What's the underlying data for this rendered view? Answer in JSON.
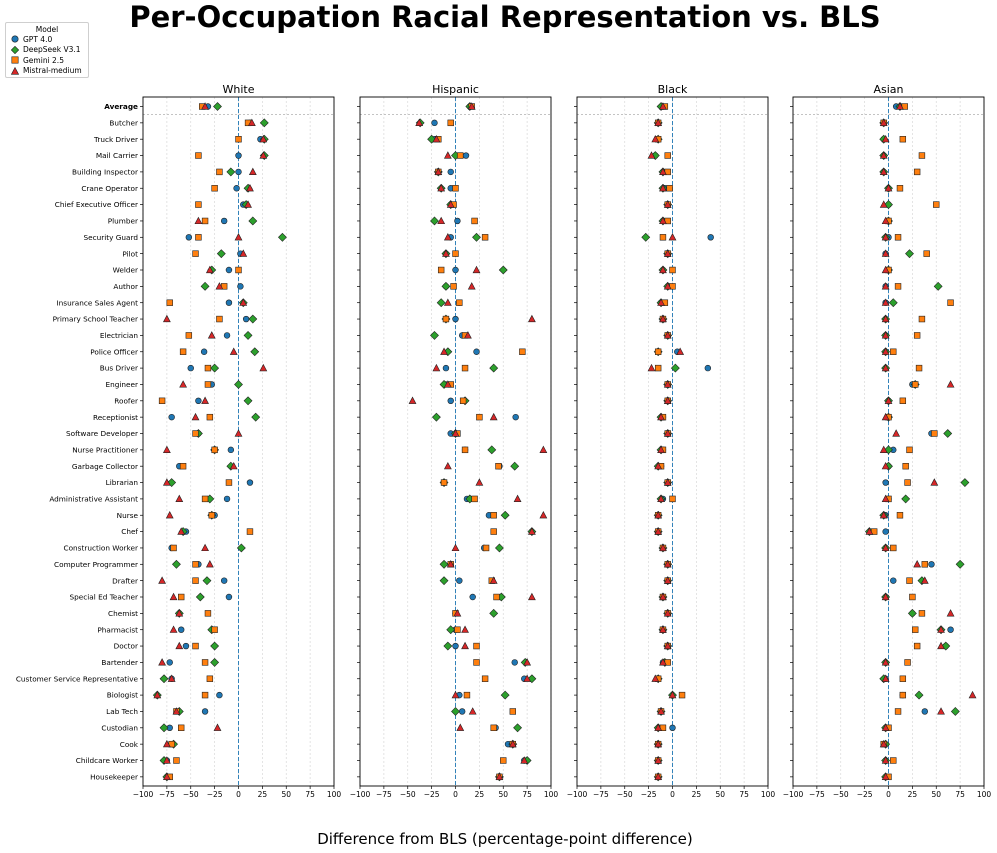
{
  "chart_data": {
    "type": "scatter",
    "title": "Per-Occupation Racial Representation vs. BLS",
    "xlabel": "Difference from BLS (percentage-point difference)",
    "panels": [
      "White",
      "Hispanic",
      "Black",
      "Asian"
    ],
    "xlim": [
      -100,
      100
    ],
    "xticks": [
      -100,
      -75,
      -50,
      -25,
      0,
      25,
      50,
      75,
      100
    ],
    "reference_line": 0,
    "legend": {
      "title": "Model",
      "position": "top-left"
    },
    "series": [
      {
        "name": "GPT 4.0",
        "color": "#1f77b4",
        "marker": "circle"
      },
      {
        "name": "DeepSeek V3.1",
        "color": "#2ca02c",
        "marker": "diamond"
      },
      {
        "name": "Gemini 2.5",
        "color": "#ff7f0e",
        "marker": "square"
      },
      {
        "name": "Mistral-medium",
        "color": "#d62728",
        "marker": "triangle"
      }
    ],
    "categories": [
      "Average",
      "Butcher",
      "Truck Driver",
      "Mail Carrier",
      "Building Inspector",
      "Crane Operator",
      "Chief Executive Officer",
      "Plumber",
      "Security Guard",
      "Pilot",
      "Welder",
      "Author",
      "Insurance Sales Agent",
      "Primary School Teacher",
      "Electrician",
      "Police Officer",
      "Bus Driver",
      "Engineer",
      "Roofer",
      "Receptionist",
      "Software Developer",
      "Nurse Practitioner",
      "Garbage Collector",
      "Librarian",
      "Administrative Assistant",
      "Nurse",
      "Chef",
      "Construction Worker",
      "Computer Programmer",
      "Drafter",
      "Special Ed Teacher",
      "Chemist",
      "Pharmacist",
      "Doctor",
      "Bartender",
      "Customer Service Representative",
      "Biologist",
      "Lab Tech",
      "Custodian",
      "Cook",
      "Childcare Worker",
      "Housekeeper"
    ],
    "values": {
      "White": {
        "GPT 4.0": [
          -32,
          12,
          23,
          0,
          0,
          -2,
          5,
          -15,
          -52,
          2,
          -10,
          2,
          -10,
          8,
          -12,
          -36,
          -50,
          -28,
          -42,
          -70,
          -42,
          -8,
          -62,
          12,
          -12,
          -25,
          -55,
          -70,
          -42,
          -15,
          -10,
          -62,
          -60,
          -55,
          -72,
          -70,
          -20,
          -35,
          -72,
          -70,
          -75,
          -75
        ],
        "DeepSeek V3.1": [
          -22,
          27,
          27,
          27,
          -8,
          10,
          8,
          15,
          46,
          -18,
          -28,
          -35,
          5,
          15,
          10,
          17,
          -25,
          0,
          10,
          18,
          -42,
          -25,
          -8,
          -70,
          -30,
          -28,
          -58,
          3,
          -65,
          -33,
          -40,
          -62,
          -28,
          -25,
          -25,
          -78,
          -85,
          -62,
          -78,
          -68,
          -78,
          -75
        ],
        "Gemini 2.5": [
          -38,
          10,
          0,
          -42,
          -20,
          -25,
          -42,
          -35,
          -42,
          -45,
          0,
          -15,
          -72,
          -20,
          -52,
          -58,
          -32,
          -32,
          -80,
          -30,
          -45,
          -25,
          -58,
          -10,
          -35,
          -28,
          12,
          -68,
          -45,
          -45,
          -60,
          -32,
          -25,
          -45,
          -35,
          -30,
          -35,
          -65,
          -60,
          -70,
          -65,
          -72
        ],
        "Mistral-medium": [
          -35,
          14,
          26,
          26,
          15,
          12,
          10,
          -42,
          0,
          5,
          -30,
          -20,
          5,
          -75,
          -28,
          -5,
          26,
          -58,
          -35,
          -45,
          0,
          -75,
          -5,
          -75,
          -62,
          -72,
          -60,
          -35,
          -30,
          -80,
          -68,
          -62,
          -68,
          -62,
          -80,
          -70,
          -85,
          -65,
          -22,
          -75,
          -75,
          -75
        ]
      },
      "Hispanic": {
        "GPT 4.0": [
          15,
          -22,
          -22,
          11,
          -5,
          -5,
          -5,
          2,
          -5,
          -10,
          0,
          -10,
          4,
          0,
          7,
          22,
          -10,
          -10,
          -5,
          63,
          -5,
          10,
          46,
          -12,
          12,
          35,
          80,
          30,
          -5,
          4,
          18,
          0,
          0,
          0,
          62,
          72,
          4,
          7,
          42,
          55,
          72,
          46
        ],
        "DeepSeek V3.1": [
          15,
          -37,
          -25,
          0,
          -18,
          -15,
          -5,
          -22,
          22,
          -10,
          50,
          -10,
          -15,
          -10,
          -22,
          -8,
          40,
          -12,
          10,
          -20,
          0,
          38,
          62,
          -12,
          15,
          52,
          80,
          46,
          -12,
          -12,
          48,
          40,
          -5,
          -8,
          73,
          80,
          52,
          0,
          65,
          60,
          75,
          46
        ],
        "Gemini 2.5": [
          17,
          -5,
          -18,
          5,
          -18,
          0,
          -2,
          20,
          31,
          0,
          -15,
          -2,
          4,
          -10,
          10,
          70,
          10,
          -5,
          8,
          25,
          2,
          10,
          45,
          -12,
          20,
          40,
          40,
          32,
          -5,
          38,
          43,
          0,
          2,
          22,
          22,
          31,
          12,
          60,
          40,
          60,
          50,
          46
        ],
        "Mistral-medium": [
          17,
          -38,
          -20,
          -8,
          -18,
          -15,
          -5,
          -15,
          -8,
          -10,
          22,
          17,
          -8,
          80,
          13,
          -12,
          -20,
          -8,
          -45,
          40,
          0,
          92,
          -8,
          25,
          65,
          92,
          80,
          0,
          -5,
          40,
          80,
          2,
          10,
          10,
          75,
          75,
          0,
          18,
          5,
          60,
          72,
          46
        ]
      },
      "Black": {
        "GPT 4.0": [
          -10,
          -15,
          -15,
          -18,
          -10,
          -8,
          -5,
          -10,
          40,
          -5,
          -10,
          -5,
          -12,
          -10,
          -5,
          5,
          37,
          -5,
          -5,
          -10,
          -5,
          -10,
          -12,
          -5,
          -10,
          -15,
          -15,
          -10,
          -5,
          -5,
          -10,
          -5,
          -10,
          -5,
          -10,
          -15,
          0,
          -12,
          0,
          -15,
          -15,
          -15
        ],
        "DeepSeek V3.1": [
          -12,
          -15,
          -15,
          -18,
          -10,
          -10,
          -5,
          -10,
          -28,
          -5,
          -10,
          -5,
          -12,
          -10,
          -5,
          -15,
          3,
          -5,
          -5,
          -12,
          -5,
          -12,
          -15,
          -5,
          -12,
          -15,
          -15,
          -10,
          -5,
          -5,
          -10,
          -5,
          -10,
          -5,
          -8,
          -15,
          0,
          -12,
          -15,
          -15,
          -15,
          -15
        ],
        "Gemini 2.5": [
          -8,
          -15,
          -15,
          -5,
          -5,
          -3,
          -5,
          -5,
          -10,
          -5,
          0,
          0,
          -8,
          -10,
          -5,
          -15,
          -15,
          -5,
          -5,
          -10,
          -5,
          -10,
          -12,
          -5,
          0,
          -15,
          -15,
          -10,
          -5,
          -5,
          -10,
          -5,
          -10,
          -5,
          -5,
          -15,
          10,
          -12,
          -10,
          -15,
          -15,
          -15
        ],
        "Mistral-medium": [
          -10,
          -15,
          -18,
          -22,
          -10,
          -10,
          -5,
          -10,
          0,
          -5,
          -10,
          -5,
          -12,
          -10,
          -5,
          8,
          -22,
          -5,
          -5,
          -12,
          -5,
          -12,
          -15,
          -5,
          -12,
          -15,
          -15,
          -10,
          -5,
          -5,
          -10,
          -5,
          -10,
          -5,
          -10,
          -18,
          0,
          -12,
          -15,
          -15,
          -15,
          -15
        ],
        "_": 0
      },
      "Asian": {
        "GPT 4.0": [
          8,
          -5,
          -5,
          -5,
          -5,
          0,
          0,
          0,
          0,
          -3,
          0,
          -3,
          -3,
          -3,
          -3,
          -3,
          -3,
          25,
          0,
          0,
          45,
          5,
          0,
          -3,
          0,
          -3,
          -3,
          -3,
          45,
          5,
          -3,
          25,
          65,
          60,
          -3,
          -3,
          15,
          38,
          -3,
          -3,
          -3,
          -3
        ],
        "DeepSeek V3.1": [
          12,
          -5,
          -5,
          -5,
          -5,
          0,
          0,
          0,
          -3,
          22,
          0,
          52,
          5,
          -3,
          -3,
          -3,
          -3,
          28,
          0,
          0,
          62,
          0,
          0,
          80,
          18,
          -5,
          -20,
          -3,
          75,
          35,
          -3,
          25,
          55,
          60,
          -3,
          -5,
          32,
          70,
          -3,
          -3,
          -3,
          -3
        ],
        "Gemini 2.5": [
          17,
          -5,
          15,
          35,
          30,
          12,
          50,
          0,
          10,
          40,
          0,
          10,
          65,
          35,
          30,
          5,
          32,
          28,
          15,
          0,
          48,
          22,
          18,
          20,
          0,
          12,
          -15,
          5,
          38,
          22,
          25,
          35,
          28,
          30,
          20,
          15,
          15,
          10,
          0,
          -5,
          5,
          0
        ],
        "Mistral-medium": [
          12,
          -5,
          -3,
          -5,
          -5,
          0,
          -5,
          -3,
          -3,
          -3,
          -3,
          -3,
          -3,
          -3,
          -3,
          -3,
          -3,
          65,
          0,
          -3,
          8,
          -5,
          -3,
          48,
          -3,
          -5,
          -20,
          -3,
          30,
          38,
          -3,
          65,
          55,
          55,
          -3,
          -3,
          88,
          55,
          -3,
          -5,
          -3,
          -3
        ]
      }
    }
  }
}
